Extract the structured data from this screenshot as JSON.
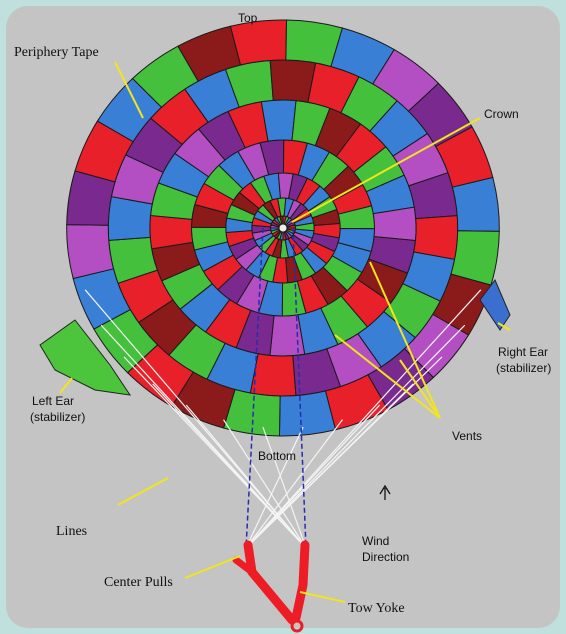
{
  "labels": {
    "top": "Top",
    "periphery_tape": "Periphery Tape",
    "crown": "Crown",
    "right_ear": [
      "Right Ear",
      "(stabilizer)"
    ],
    "left_ear": [
      "Left Ear",
      "(stabilizer)"
    ],
    "vents": "Vents",
    "bottom": "Bottom",
    "lines": "Lines",
    "wind_direction": [
      "Wind",
      "Direction"
    ],
    "center_pulls": "Center Pulls",
    "tow_yoke": "Tow Yoke"
  }
}
